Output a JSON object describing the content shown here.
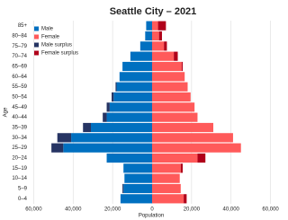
{
  "chart_data": {
    "type": "pyramid",
    "title": "Seattle City – 2021",
    "x_label": "Population",
    "y_label": "Age",
    "categories": [
      "0–4",
      "5–9",
      "10–14",
      "15–19",
      "20–24",
      "25–29",
      "30–34",
      "35–39",
      "40–44",
      "45–49",
      "50–54",
      "55–59",
      "60–64",
      "65–69",
      "70–74",
      "75–79",
      "80–84",
      "85+"
    ],
    "series": [
      {
        "name": "Male",
        "color": "#0070c0",
        "side": "left",
        "values": [
          16000,
          14500,
          14000,
          14500,
          23000,
          45000,
          41000,
          31000,
          23000,
          21500,
          19500,
          18000,
          16500,
          15000,
          11000,
          6000,
          3500,
          3000
        ]
      },
      {
        "name": "Female",
        "color": "#ff5a5a",
        "side": "right",
        "values": [
          16000,
          14500,
          14000,
          14500,
          23000,
          45000,
          41000,
          31000,
          23000,
          21500,
          19500,
          18000,
          16500,
          15000,
          11000,
          6000,
          3500,
          3000
        ]
      },
      {
        "name": "Male surplus",
        "color": "#263463",
        "side": "left",
        "values": [
          0,
          500,
          0,
          0,
          0,
          6000,
          7000,
          4000,
          2000,
          1500,
          1000,
          500,
          0,
          0,
          0,
          0,
          0,
          0
        ]
      },
      {
        "name": "Female surplus",
        "color": "#b0001a",
        "side": "right",
        "values": [
          1500,
          0,
          0,
          1000,
          4000,
          0,
          0,
          0,
          0,
          0,
          0,
          0,
          0,
          500,
          2000,
          1500,
          1500,
          4000
        ]
      }
    ],
    "xlim": [
      -62000,
      62000
    ],
    "xticks": [
      {
        "value": -60000,
        "label": "60,000"
      },
      {
        "value": -40000,
        "label": "40,000"
      },
      {
        "value": -20000,
        "label": "20,000"
      },
      0,
      {
        "value": 20000,
        "label": "20,000"
      },
      {
        "value": 40000,
        "label": "40,000"
      },
      {
        "value": 60000,
        "label": "60,000"
      }
    ],
    "grid": true,
    "legend": "top-left"
  }
}
